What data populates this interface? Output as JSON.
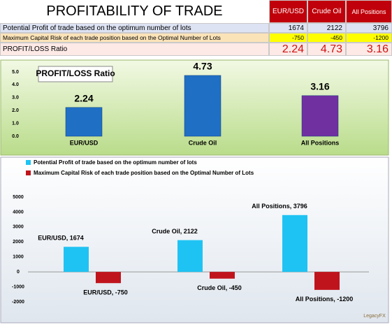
{
  "table": {
    "title": "PROFITABILITY OF TRADE",
    "headers": [
      "EUR/USD",
      "Crude Oil",
      "All Positions"
    ],
    "rows": [
      [
        "Potential Profit of trade based on the optimum number of lots",
        1674,
        2122,
        3796
      ],
      [
        "Maximum Capital Risk of each trade position based on the Optimal Number of Lots",
        -750,
        -450,
        -1200
      ],
      [
        "PROFIT/LOSS Ratio",
        2.24,
        4.73,
        3.16
      ]
    ]
  },
  "chart_data": [
    {
      "type": "bar",
      "title": "PROFIT/LOSS Ratio",
      "categories": [
        "EUR/USD",
        "Crude Oil",
        "All Positions"
      ],
      "values": [
        2.24,
        4.73,
        3.16
      ],
      "colors": [
        "#1f6fc5",
        "#1f6fc5",
        "#7030a0"
      ],
      "ylim": [
        0,
        5
      ],
      "yticks": [
        {
          "value": 0,
          "label": "0.0"
        },
        {
          "value": 1,
          "label": "1.0"
        },
        {
          "value": 2,
          "label": "2.0"
        },
        {
          "value": 3,
          "label": "3.0"
        },
        {
          "value": 4,
          "label": "4.0"
        },
        {
          "value": 5,
          "label": "5.0"
        }
      ]
    },
    {
      "type": "bar",
      "series": [
        {
          "name": "Potential Profit of trade based on the optimum number of lots",
          "color": "#1fc3f3",
          "values": [
            1674,
            2122,
            3796
          ],
          "value_labels": [
            "EUR/USD, 1674",
            "Crude Oil, 2122",
            "All Positions, 3796"
          ]
        },
        {
          "name": "Maximum Capital Risk of each trade position based on the Optimal Number of Lots",
          "color": "#c0141c",
          "values": [
            -750,
            -450,
            -1200
          ],
          "value_labels": [
            "EUR/USD, -750",
            "Crude Oil, -450",
            "All Positions, -1200"
          ]
        }
      ],
      "ylim": [
        -2000,
        5000
      ],
      "yticks": [
        -2000,
        -1000,
        0,
        1000,
        2000,
        3000,
        4000,
        5000
      ]
    }
  ],
  "watermark": "LegacyFX"
}
